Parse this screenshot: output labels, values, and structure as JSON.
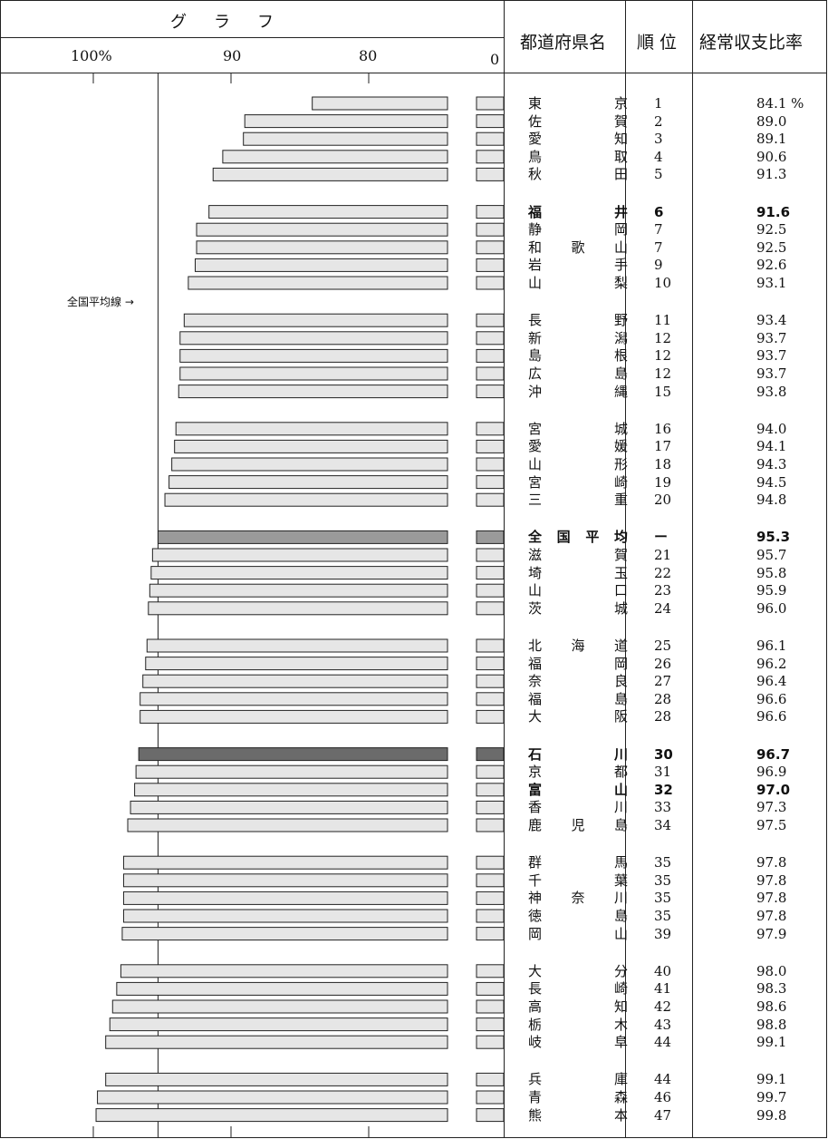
{
  "header": {
    "graph_title": "グ　ラ　フ",
    "ticks": [
      "100%",
      "90",
      "80",
      "0"
    ],
    "col_name": "都道府県名",
    "col_rank": "順 位",
    "col_ratio": "経常収支比率"
  },
  "annotation": "全国平均線 →",
  "unit_suffix": "%",
  "chart_data": {
    "type": "bar",
    "orientation": "horizontal",
    "title": "",
    "xlim": [
      100,
      75
    ],
    "grid": false,
    "reference_line": {
      "label": "全国平均線",
      "value": 95.3
    },
    "rows": [
      {
        "name": "東　　京",
        "rank": "1",
        "value": 84.1,
        "style": "normal"
      },
      {
        "name": "佐　　賀",
        "rank": "2",
        "value": 89.0,
        "style": "normal"
      },
      {
        "name": "愛　　知",
        "rank": "3",
        "value": 89.1,
        "style": "normal"
      },
      {
        "name": "鳥　　取",
        "rank": "4",
        "value": 90.6,
        "style": "normal"
      },
      {
        "name": "秋　　田",
        "rank": "5",
        "value": 91.3,
        "style": "normal"
      },
      {
        "name": "福　　井",
        "rank": "6",
        "value": 91.6,
        "style": "bold"
      },
      {
        "name": "静　　岡",
        "rank": "7",
        "value": 92.5,
        "style": "normal"
      },
      {
        "name": "和　歌　山",
        "rank": "7",
        "value": 92.5,
        "style": "normal"
      },
      {
        "name": "岩　　手",
        "rank": "9",
        "value": 92.6,
        "style": "normal"
      },
      {
        "name": "山　　梨",
        "rank": "10",
        "value": 93.1,
        "style": "normal"
      },
      {
        "name": "長　　野",
        "rank": "11",
        "value": 93.4,
        "style": "normal"
      },
      {
        "name": "新　　潟",
        "rank": "12",
        "value": 93.7,
        "style": "normal"
      },
      {
        "name": "島　　根",
        "rank": "12",
        "value": 93.7,
        "style": "normal"
      },
      {
        "name": "広　　島",
        "rank": "12",
        "value": 93.7,
        "style": "normal"
      },
      {
        "name": "沖　　縄",
        "rank": "15",
        "value": 93.8,
        "style": "normal"
      },
      {
        "name": "宮　　城",
        "rank": "16",
        "value": 94.0,
        "style": "normal"
      },
      {
        "name": "愛　　媛",
        "rank": "17",
        "value": 94.1,
        "style": "normal"
      },
      {
        "name": "山　　形",
        "rank": "18",
        "value": 94.3,
        "style": "normal"
      },
      {
        "name": "宮　　崎",
        "rank": "19",
        "value": 94.5,
        "style": "normal"
      },
      {
        "name": "三　　重",
        "rank": "20",
        "value": 94.8,
        "style": "normal"
      },
      {
        "name": "全国平均",
        "rank": "ー",
        "value": 95.3,
        "style": "average"
      },
      {
        "name": "滋　　賀",
        "rank": "21",
        "value": 95.7,
        "style": "normal"
      },
      {
        "name": "埼　　玉",
        "rank": "22",
        "value": 95.8,
        "style": "normal"
      },
      {
        "name": "山　　口",
        "rank": "23",
        "value": 95.9,
        "style": "normal"
      },
      {
        "name": "茨　　城",
        "rank": "24",
        "value": 96.0,
        "style": "normal"
      },
      {
        "name": "北　海　道",
        "rank": "25",
        "value": 96.1,
        "style": "normal"
      },
      {
        "name": "福　　岡",
        "rank": "26",
        "value": 96.2,
        "style": "normal"
      },
      {
        "name": "奈　　良",
        "rank": "27",
        "value": 96.4,
        "style": "normal"
      },
      {
        "name": "福　　島",
        "rank": "28",
        "value": 96.6,
        "style": "normal"
      },
      {
        "name": "大　　阪",
        "rank": "28",
        "value": 96.6,
        "style": "normal"
      },
      {
        "name": "石　　川",
        "rank": "30",
        "value": 96.7,
        "style": "highlight"
      },
      {
        "name": "京　　都",
        "rank": "31",
        "value": 96.9,
        "style": "normal"
      },
      {
        "name": "富　　山",
        "rank": "32",
        "value": 97.0,
        "style": "bold"
      },
      {
        "name": "香　　川",
        "rank": "33",
        "value": 97.3,
        "style": "normal"
      },
      {
        "name": "鹿　児　島",
        "rank": "34",
        "value": 97.5,
        "style": "normal"
      },
      {
        "name": "群　　馬",
        "rank": "35",
        "value": 97.8,
        "style": "normal"
      },
      {
        "name": "千　　葉",
        "rank": "35",
        "value": 97.8,
        "style": "normal"
      },
      {
        "name": "神　奈　川",
        "rank": "35",
        "value": 97.8,
        "style": "normal"
      },
      {
        "name": "徳　　島",
        "rank": "35",
        "value": 97.8,
        "style": "normal"
      },
      {
        "name": "岡　　山",
        "rank": "39",
        "value": 97.9,
        "style": "normal"
      },
      {
        "name": "大　　分",
        "rank": "40",
        "value": 98.0,
        "style": "normal"
      },
      {
        "name": "長　　崎",
        "rank": "41",
        "value": 98.3,
        "style": "normal"
      },
      {
        "name": "高　　知",
        "rank": "42",
        "value": 98.6,
        "style": "normal"
      },
      {
        "name": "栃　　木",
        "rank": "43",
        "value": 98.8,
        "style": "normal"
      },
      {
        "name": "岐　　阜",
        "rank": "44",
        "value": 99.1,
        "style": "normal"
      },
      {
        "name": "兵　　庫",
        "rank": "44",
        "value": 99.1,
        "style": "normal"
      },
      {
        "name": "青　　森",
        "rank": "46",
        "value": 99.7,
        "style": "normal"
      },
      {
        "name": "熊　　本",
        "rank": "47",
        "value": 99.8,
        "style": "normal"
      }
    ]
  },
  "colors": {
    "bar_fill": "#e6e6e6",
    "average_fill": "#9a9a9a",
    "highlight_fill": "#6b6b6b",
    "stroke": "#222222"
  }
}
